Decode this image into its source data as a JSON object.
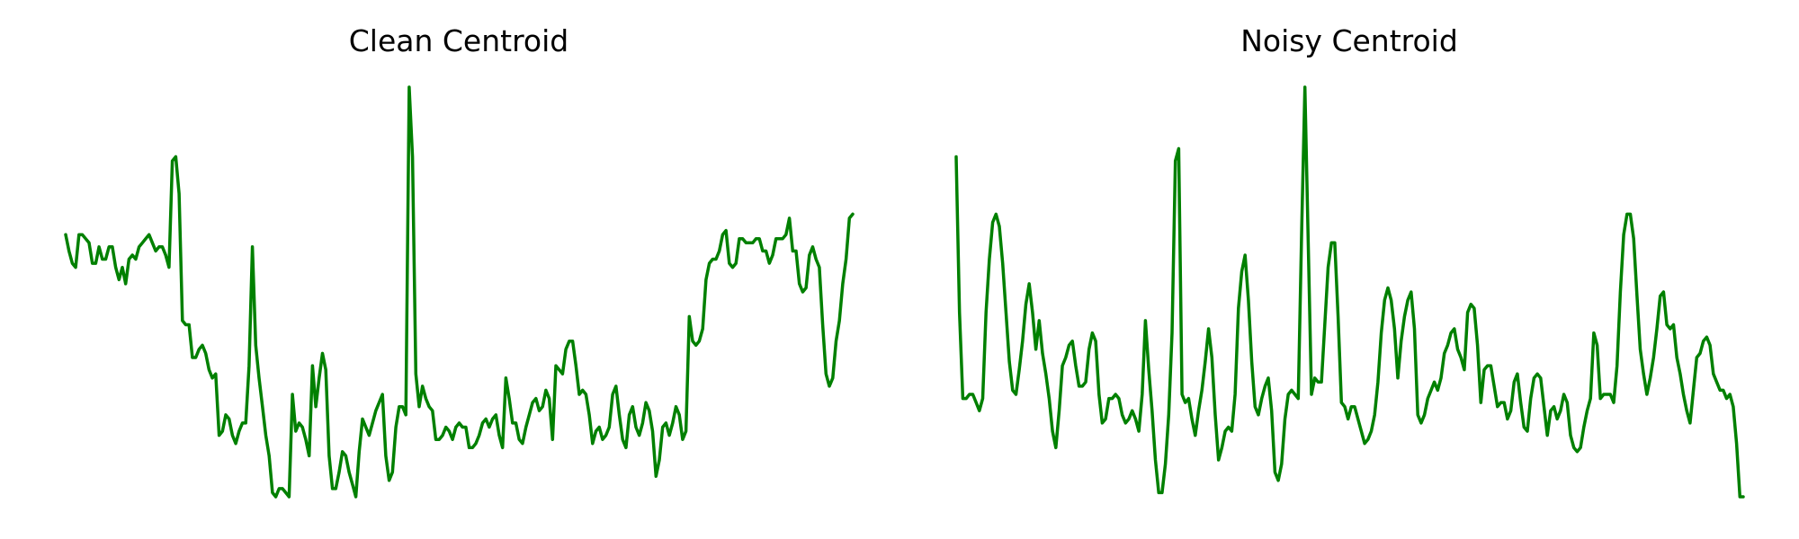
{
  "chart_data": [
    {
      "type": "line",
      "title": "Clean Centroid",
      "xlabel": "",
      "ylabel": "",
      "axes_visible": false,
      "grid": false,
      "legend": false,
      "color": "#008000",
      "x_range": [
        0,
        191
      ],
      "y_range": [
        0,
        1
      ],
      "series": [
        {
          "values": [
            0.64,
            0.6,
            0.57,
            0.56,
            0.64,
            0.64,
            0.63,
            0.62,
            0.57,
            0.57,
            0.61,
            0.58,
            0.58,
            0.61,
            0.61,
            0.56,
            0.53,
            0.56,
            0.52,
            0.58,
            0.59,
            0.58,
            0.61,
            0.62,
            0.63,
            0.64,
            0.62,
            0.6,
            0.61,
            0.61,
            0.59,
            0.56,
            0.82,
            0.83,
            0.74,
            0.43,
            0.42,
            0.42,
            0.34,
            0.34,
            0.36,
            0.37,
            0.35,
            0.31,
            0.29,
            0.3,
            0.15,
            0.16,
            0.2,
            0.19,
            0.15,
            0.13,
            0.16,
            0.18,
            0.18,
            0.32,
            0.61,
            0.37,
            0.29,
            0.22,
            0.15,
            0.1,
            0.01,
            0.0,
            0.02,
            0.02,
            0.01,
            0.0,
            0.25,
            0.16,
            0.18,
            0.17,
            0.14,
            0.1,
            0.32,
            0.22,
            0.29,
            0.35,
            0.31,
            0.1,
            0.02,
            0.02,
            0.06,
            0.11,
            0.1,
            0.06,
            0.03,
            0.0,
            0.11,
            0.19,
            0.17,
            0.15,
            0.18,
            0.21,
            0.23,
            0.25,
            0.1,
            0.04,
            0.06,
            0.17,
            0.22,
            0.22,
            0.2,
            1.0,
            0.83,
            0.3,
            0.22,
            0.27,
            0.24,
            0.22,
            0.21,
            0.14,
            0.14,
            0.15,
            0.17,
            0.16,
            0.14,
            0.17,
            0.18,
            0.17,
            0.17,
            0.12,
            0.12,
            0.13,
            0.15,
            0.18,
            0.19,
            0.17,
            0.19,
            0.2,
            0.15,
            0.12,
            0.29,
            0.24,
            0.18,
            0.18,
            0.14,
            0.13,
            0.17,
            0.2,
            0.23,
            0.24,
            0.21,
            0.22,
            0.26,
            0.24,
            0.14,
            0.32,
            0.31,
            0.3,
            0.36,
            0.38,
            0.38,
            0.32,
            0.25,
            0.26,
            0.25,
            0.2,
            0.13,
            0.16,
            0.17,
            0.14,
            0.15,
            0.17,
            0.25,
            0.27,
            0.2,
            0.14,
            0.12,
            0.2,
            0.22,
            0.17,
            0.15,
            0.18,
            0.23,
            0.21,
            0.16,
            0.05,
            0.09,
            0.17,
            0.18,
            0.15,
            0.18,
            0.22,
            0.2,
            0.14,
            0.16,
            0.44,
            0.38,
            0.37,
            0.38,
            0.41,
            0.53,
            0.57,
            0.58,
            0.58,
            0.6,
            0.64,
            0.65,
            0.57,
            0.56,
            0.57,
            0.63,
            0.63,
            0.62,
            0.62,
            0.62,
            0.63,
            0.63,
            0.6,
            0.6,
            0.57,
            0.59,
            0.63,
            0.63,
            0.63,
            0.64,
            0.68,
            0.6,
            0.6,
            0.52,
            0.5,
            0.51,
            0.59,
            0.61,
            0.58,
            0.56,
            0.42,
            0.3,
            0.27,
            0.29,
            0.38,
            0.43,
            0.52,
            0.58,
            0.68,
            0.69
          ]
        }
      ]
    },
    {
      "type": "line",
      "title": "Noisy Centroid",
      "xlabel": "",
      "ylabel": "",
      "axes_visible": false,
      "grid": false,
      "legend": false,
      "color": "#008000",
      "x_range": [
        0,
        191
      ],
      "y_range": [
        0,
        1
      ],
      "series": [
        {
          "values": [
            0.83,
            0.45,
            0.24,
            0.24,
            0.25,
            0.25,
            0.23,
            0.21,
            0.24,
            0.45,
            0.58,
            0.67,
            0.69,
            0.66,
            0.57,
            0.45,
            0.33,
            0.26,
            0.25,
            0.31,
            0.38,
            0.47,
            0.52,
            0.45,
            0.36,
            0.43,
            0.35,
            0.3,
            0.24,
            0.16,
            0.12,
            0.21,
            0.32,
            0.34,
            0.37,
            0.38,
            0.32,
            0.27,
            0.27,
            0.28,
            0.36,
            0.4,
            0.38,
            0.25,
            0.18,
            0.19,
            0.24,
            0.24,
            0.25,
            0.24,
            0.2,
            0.18,
            0.19,
            0.21,
            0.19,
            0.16,
            0.25,
            0.43,
            0.31,
            0.21,
            0.09,
            0.01,
            0.01,
            0.08,
            0.2,
            0.4,
            0.82,
            0.85,
            0.25,
            0.23,
            0.24,
            0.19,
            0.15,
            0.21,
            0.26,
            0.33,
            0.41,
            0.34,
            0.2,
            0.09,
            0.12,
            0.16,
            0.17,
            0.16,
            0.25,
            0.46,
            0.55,
            0.59,
            0.48,
            0.33,
            0.22,
            0.2,
            0.24,
            0.27,
            0.29,
            0.21,
            0.06,
            0.04,
            0.08,
            0.19,
            0.25,
            0.26,
            0.25,
            0.24,
            0.64,
            1.0,
            0.62,
            0.25,
            0.29,
            0.28,
            0.28,
            0.42,
            0.56,
            0.62,
            0.62,
            0.44,
            0.23,
            0.22,
            0.19,
            0.22,
            0.22,
            0.19,
            0.16,
            0.13,
            0.14,
            0.16,
            0.2,
            0.28,
            0.4,
            0.48,
            0.51,
            0.48,
            0.41,
            0.29,
            0.38,
            0.44,
            0.48,
            0.5,
            0.41,
            0.2,
            0.18,
            0.2,
            0.24,
            0.26,
            0.28,
            0.26,
            0.29,
            0.35,
            0.37,
            0.4,
            0.41,
            0.36,
            0.34,
            0.31,
            0.45,
            0.47,
            0.46,
            0.37,
            0.23,
            0.31,
            0.32,
            0.32,
            0.27,
            0.22,
            0.23,
            0.23,
            0.19,
            0.21,
            0.28,
            0.3,
            0.23,
            0.17,
            0.16,
            0.24,
            0.29,
            0.3,
            0.29,
            0.22,
            0.15,
            0.21,
            0.22,
            0.19,
            0.21,
            0.25,
            0.23,
            0.15,
            0.12,
            0.11,
            0.12,
            0.17,
            0.21,
            0.24,
            0.4,
            0.37,
            0.24,
            0.25,
            0.25,
            0.25,
            0.23,
            0.32,
            0.5,
            0.64,
            0.69,
            0.69,
            0.63,
            0.49,
            0.36,
            0.3,
            0.25,
            0.29,
            0.34,
            0.41,
            0.49,
            0.5,
            0.42,
            0.41,
            0.42,
            0.34,
            0.3,
            0.25,
            0.21,
            0.18,
            0.26,
            0.34,
            0.35,
            0.38,
            0.39,
            0.37,
            0.3,
            0.28,
            0.26,
            0.26,
            0.24,
            0.25,
            0.22,
            0.13,
            0.0,
            0.0
          ]
        }
      ]
    }
  ]
}
